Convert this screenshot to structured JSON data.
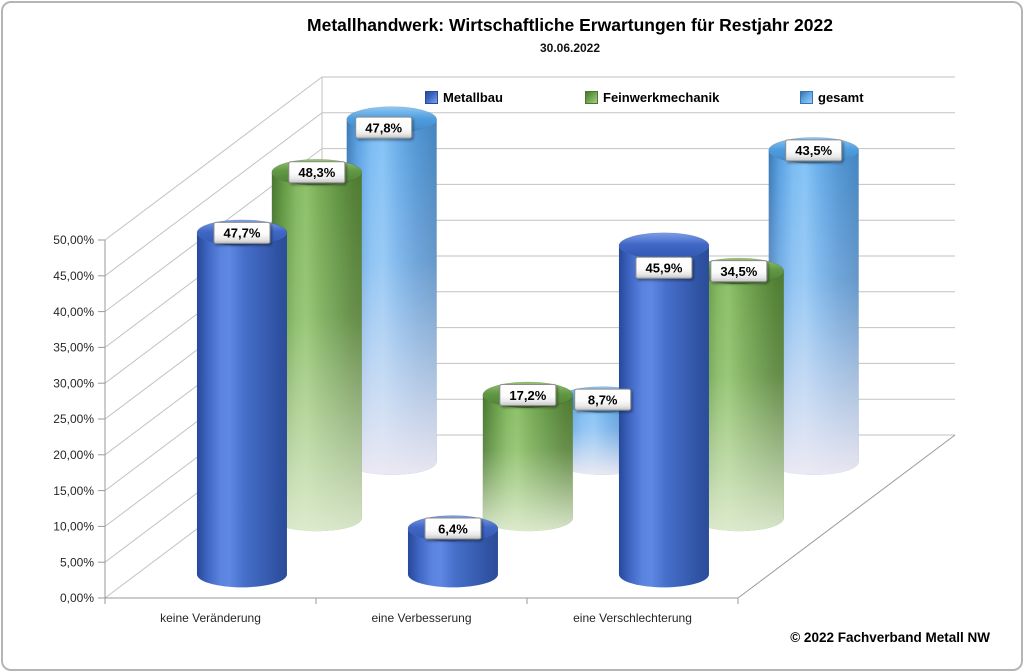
{
  "header": {
    "title": "Metallhandwerk: Wirtschaftliche Erwartungen für Restjahr 2022",
    "subtitle": "30.06.2022"
  },
  "footer": {
    "copyright": "© 2022 Fachverband Metall NW"
  },
  "chart_data": {
    "type": "bar",
    "subtype": "3d-cylinder",
    "title": "Metallhandwerk: Wirtschaftliche Erwartungen für Restjahr 2022",
    "subtitle": "30.06.2022",
    "categories": [
      "keine Veränderung",
      "eine Verbesserung",
      "eine Verschlechterung"
    ],
    "series": [
      {
        "name": "Metallbau",
        "color": "#3E68C6",
        "values": [
          47.7,
          6.4,
          45.9
        ],
        "labels": [
          "47,7%",
          "6,4%",
          "45,9%"
        ]
      },
      {
        "name": "Feinwerkmechanik",
        "color": "#6CA24B",
        "values": [
          48.3,
          17.2,
          34.5
        ],
        "labels": [
          "48,3%",
          "17,2%",
          "34,5%"
        ]
      },
      {
        "name": "gesamt",
        "color": "#5EA5E3",
        "values": [
          47.8,
          8.7,
          43.5
        ],
        "labels": [
          "47,8%",
          "8,7%",
          "43,5%"
        ]
      }
    ],
    "ylim": [
      0,
      50
    ],
    "ytick_step": 5,
    "y_tick_labels": [
      "0,00%",
      "5,00%",
      "10,00%",
      "15,00%",
      "20,00%",
      "25,00%",
      "30,00%",
      "35,00%",
      "40,00%",
      "45,00%",
      "50,00%"
    ],
    "grid": true,
    "legend_position": "top",
    "label_offsets": {
      "0-2": [
        0,
        22
      ],
      "2-0": [
        -8,
        8
      ]
    },
    "swatches": [
      {
        "light": "#7FA3E8",
        "border": "#2A4A92"
      },
      {
        "light": "#A8CE85",
        "border": "#4B7530"
      },
      {
        "light": "#9CCBF4",
        "border": "#3A74AC"
      }
    ]
  }
}
